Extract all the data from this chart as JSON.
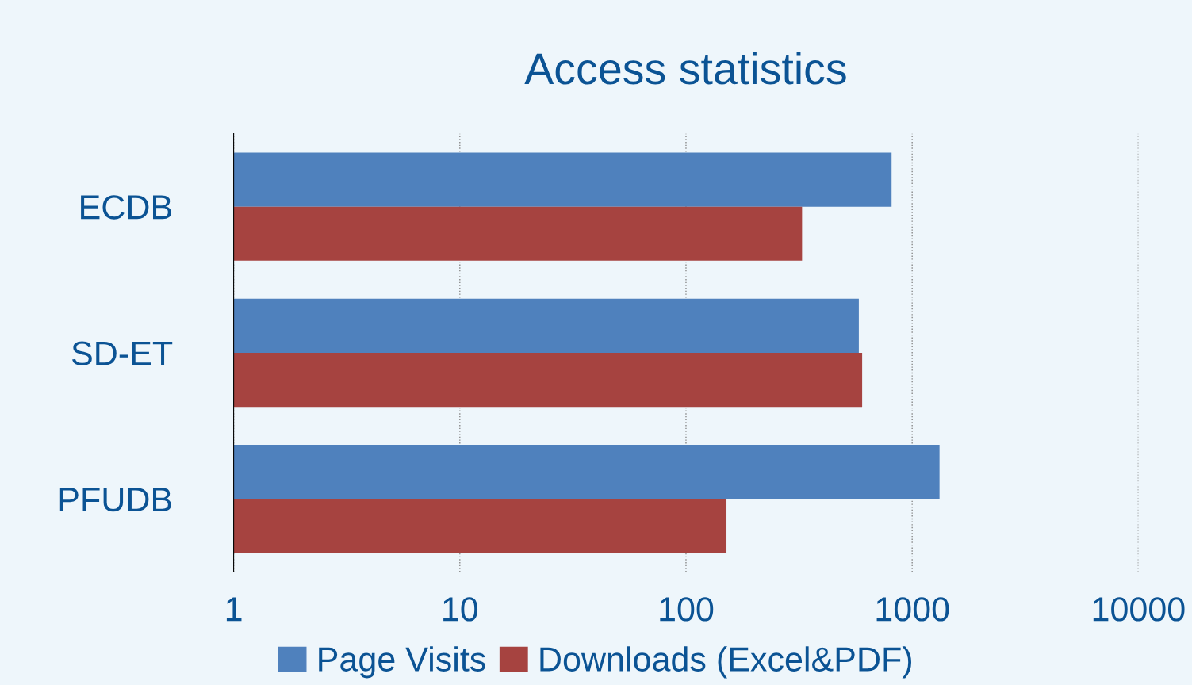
{
  "chart_data": {
    "type": "bar",
    "orientation": "horizontal",
    "title": "Access statistics",
    "categories": [
      "ECDB",
      "SD-ET",
      "PFUDB"
    ],
    "series": [
      {
        "name": "Page Visits",
        "color": "#4f81bd",
        "values": [
          810,
          580,
          1320
        ]
      },
      {
        "name": "Downloads (Excel&PDF)",
        "color": "#a64340",
        "values": [
          325,
          600,
          150
        ]
      }
    ],
    "log": "x",
    "xlim": [
      1,
      10000
    ],
    "xticks": [
      1,
      10,
      100,
      1000,
      10000
    ],
    "grid": "x",
    "legend": "bottom"
  }
}
